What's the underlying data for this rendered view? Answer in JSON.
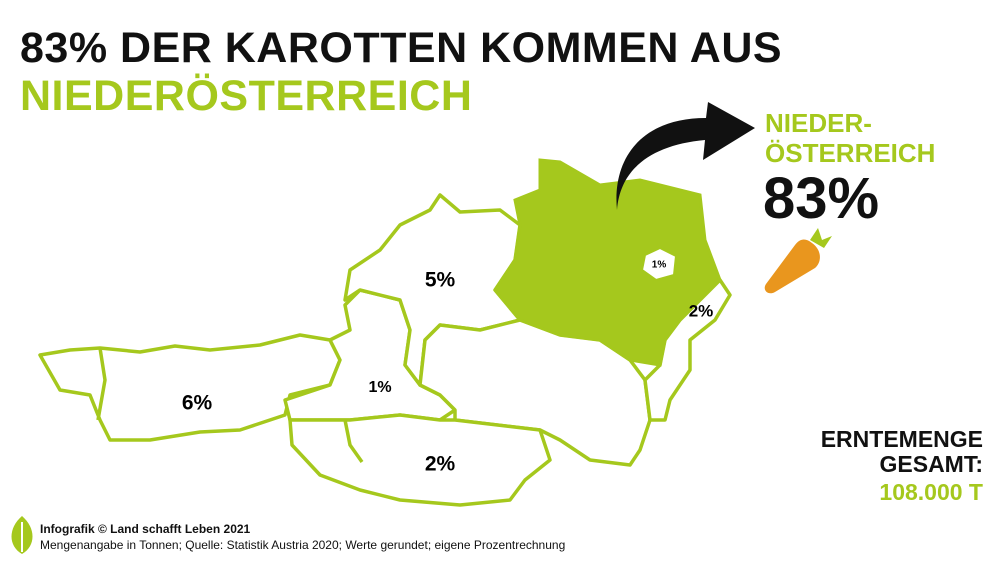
{
  "header": {
    "title_line1": "83% DER KAROTTEN KOMMEN AUS",
    "title_line2": "NIEDERÖSTERREICH"
  },
  "regions": [
    {
      "label": "6%"
    },
    {
      "label": "1%"
    },
    {
      "label": "5%"
    },
    {
      "label": "2%"
    },
    {
      "label": "1%"
    },
    {
      "label": "2%"
    }
  ],
  "highlight": {
    "name_line1": "NIEDER-",
    "name_line2": "ÖSTERREICH",
    "share": "83%"
  },
  "total": {
    "line1": "ERNTEMENGE",
    "line2": "GESAMT:",
    "amount": "108.000 T"
  },
  "footer": {
    "credit": "Infografik © Land schafft Leben 2021",
    "source": "Mengenangabe in Tonnen; Quelle: Statistik Austria 2020; Werte gerundet; eigene Prozentrechnung"
  }
}
